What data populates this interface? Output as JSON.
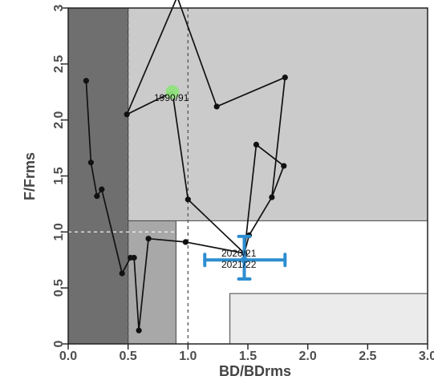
{
  "chart_data": {
    "type": "scatter",
    "xlabel": "BD/BDrms",
    "ylabel": "F/Frms",
    "xlim": [
      0,
      3
    ],
    "ylim": [
      0,
      3
    ],
    "x_ticks": [
      "0.0",
      "0.5",
      "1.0",
      "1.5",
      "2.0",
      "2.5",
      "3.0"
    ],
    "y_ticks": [
      "0",
      "0.5",
      "1.0",
      "1.5",
      "2.0",
      "2.5",
      "3"
    ],
    "regions": [
      {
        "x0": 0.0,
        "x1": 0.5,
        "y0": 0.0,
        "y1": 3.0,
        "color": "#6f6f6f"
      },
      {
        "x0": 0.5,
        "x1": 0.9,
        "y0": 0.0,
        "y1": 3.0,
        "color": "#a8a8a8"
      },
      {
        "x0": 0.5,
        "x1": 3.0,
        "y0": 1.1,
        "y1": 3.0,
        "color": "#cbcbcb"
      },
      {
        "x0": 1.35,
        "x1": 3.0,
        "y0": 0.0,
        "y1": 0.45,
        "color": "#ebebeb"
      }
    ],
    "reference_lines": {
      "x": [
        0.5,
        1.0
      ],
      "y": [
        1.0
      ]
    },
    "trajectory": [
      {
        "x": 0.15,
        "y": 2.35
      },
      {
        "x": 0.19,
        "y": 1.62
      },
      {
        "x": 0.24,
        "y": 1.32
      },
      {
        "x": 0.28,
        "y": 1.38
      },
      {
        "x": 0.45,
        "y": 0.63
      },
      {
        "x": 0.52,
        "y": 0.77
      },
      {
        "x": 0.55,
        "y": 0.77
      },
      {
        "x": 0.59,
        "y": 0.12
      },
      {
        "x": 0.67,
        "y": 0.94
      },
      {
        "x": 0.98,
        "y": 0.91
      },
      {
        "x": 1.47,
        "y": 0.81
      },
      {
        "x": 1.51,
        "y": 0.97
      },
      {
        "x": 1.7,
        "y": 1.31
      },
      {
        "x": 1.81,
        "y": 2.38
      },
      {
        "x": 1.24,
        "y": 2.12
      },
      {
        "x": 0.91,
        "y": 3.1
      },
      {
        "x": 0.49,
        "y": 2.05
      },
      {
        "x": 0.87,
        "y": 2.25
      },
      {
        "x": 1.0,
        "y": 1.29
      },
      {
        "x": 1.47,
        "y": 0.81
      },
      {
        "x": 1.57,
        "y": 1.78
      },
      {
        "x": 1.8,
        "y": 1.59
      },
      {
        "x": 1.7,
        "y": 1.31
      }
    ],
    "points": [
      {
        "x": 0.15,
        "y": 2.35
      },
      {
        "x": 0.19,
        "y": 1.62
      },
      {
        "x": 0.24,
        "y": 1.32
      },
      {
        "x": 0.28,
        "y": 1.38
      },
      {
        "x": 0.45,
        "y": 0.63
      },
      {
        "x": 0.52,
        "y": 0.77
      },
      {
        "x": 0.55,
        "y": 0.77
      },
      {
        "x": 0.59,
        "y": 0.12
      },
      {
        "x": 0.67,
        "y": 0.94
      },
      {
        "x": 0.98,
        "y": 0.91
      },
      {
        "x": 1.47,
        "y": 0.81
      },
      {
        "x": 1.51,
        "y": 0.97
      },
      {
        "x": 1.7,
        "y": 1.31
      },
      {
        "x": 1.81,
        "y": 2.38
      },
      {
        "x": 1.24,
        "y": 2.12
      },
      {
        "x": 0.49,
        "y": 2.05
      },
      {
        "x": 1.0,
        "y": 1.29
      },
      {
        "x": 1.57,
        "y": 1.78
      },
      {
        "x": 1.8,
        "y": 1.59
      }
    ],
    "start_point": {
      "x": 0.87,
      "y": 2.25
    },
    "current_point": {
      "x": 1.47,
      "y": 0.75
    },
    "error_bars": {
      "x_low": 1.14,
      "x_high": 1.81,
      "y_low": 0.58,
      "y_high": 0.96
    },
    "labels": [
      {
        "text": "1990/91"
      },
      {
        "text": "2020/21"
      },
      {
        "text": "2021/22"
      }
    ],
    "colors": {
      "trajectory": "#111111",
      "start_point": "#8fe07b",
      "current_point": "#2c8ed1",
      "frame": "#222222",
      "reference": "#555555"
    }
  }
}
